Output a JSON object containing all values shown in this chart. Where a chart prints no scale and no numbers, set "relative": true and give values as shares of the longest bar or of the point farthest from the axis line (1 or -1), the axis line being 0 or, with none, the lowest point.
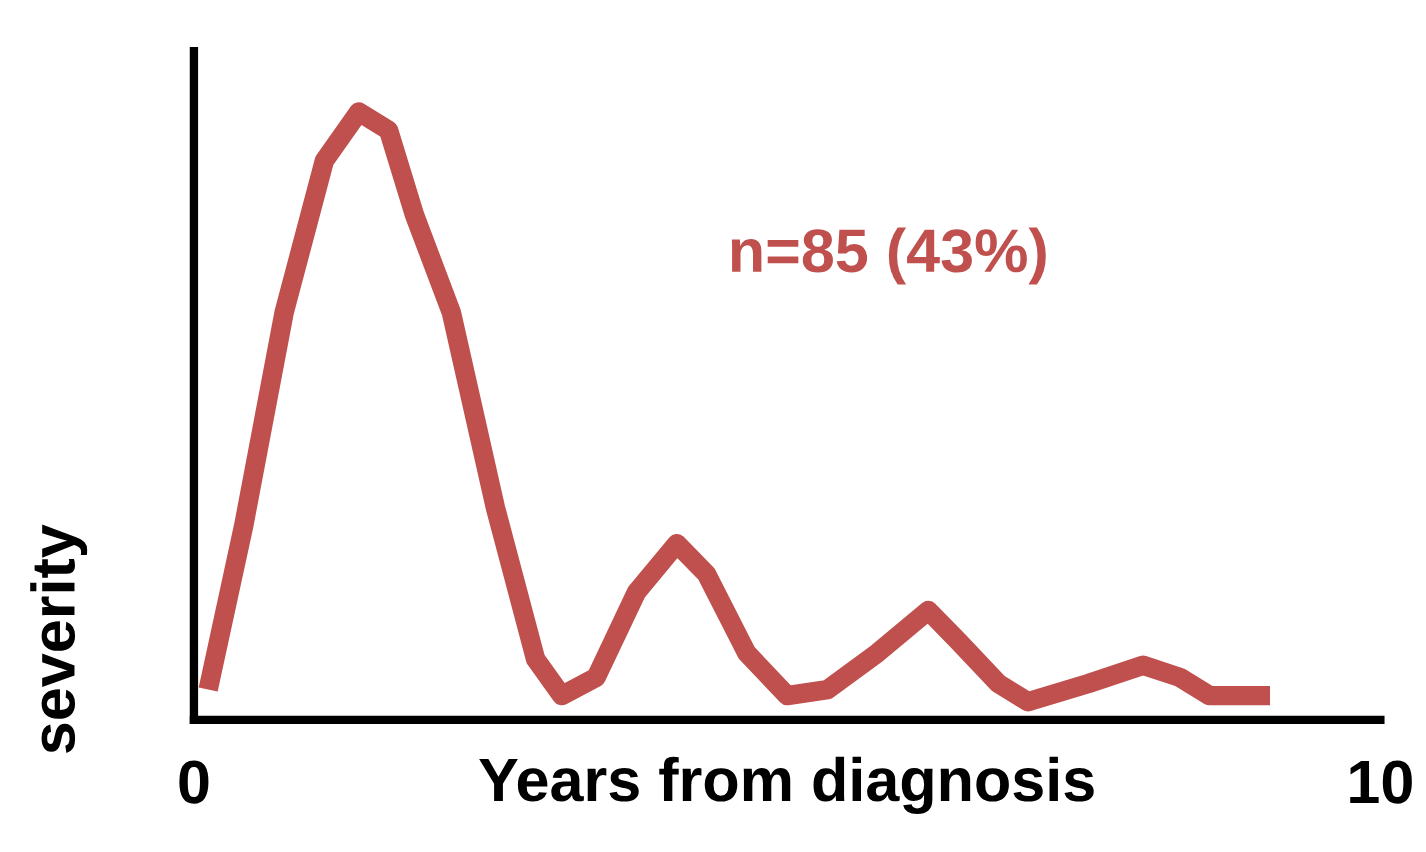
{
  "chart_data": {
    "type": "line",
    "relative": true,
    "xlabel": "Years from diagnosis",
    "ylabel": "severity",
    "annotations": [
      "n=85 (43%)"
    ],
    "xlim": [
      0,
      10
    ],
    "xticks": [
      0,
      10
    ],
    "grid": false,
    "legend": false,
    "series": [
      {
        "color": "#c0504d",
        "x": [
          0.12,
          0.42,
          0.76,
          1.1,
          1.39,
          1.64,
          1.86,
          2.17,
          2.54,
          2.88,
          3.1,
          3.39,
          3.73,
          4.07,
          4.32,
          4.66,
          5.0,
          5.34,
          5.76,
          6.19,
          6.44,
          6.78,
          7.03,
          7.54,
          8.0,
          8.31,
          8.56,
          9.07
        ],
        "values": [
          0.05,
          0.32,
          0.67,
          0.92,
          1.0,
          0.97,
          0.83,
          0.67,
          0.35,
          0.1,
          0.04,
          0.07,
          0.21,
          0.29,
          0.24,
          0.11,
          0.04,
          0.05,
          0.11,
          0.18,
          0.13,
          0.06,
          0.03,
          0.06,
          0.09,
          0.07,
          0.04,
          0.04
        ]
      }
    ]
  }
}
